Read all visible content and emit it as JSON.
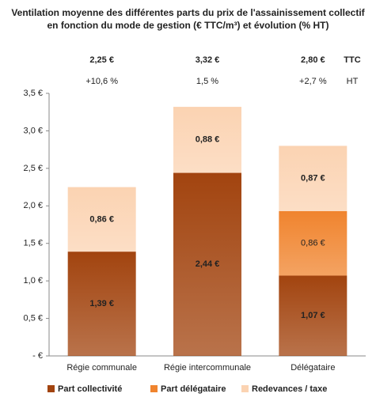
{
  "chart_data": {
    "type": "stacked_bar",
    "title": "Ventilation moyenne des différentes parts du prix de l'assainissement collectif en fonction du mode de gestion (€ TTC/m³) et évolution (% HT)",
    "categories": [
      "Régie communale",
      "Régie intercommunale",
      "Délégataire"
    ],
    "series": [
      {
        "name": "Part collectivité",
        "color": "#a2440f",
        "values": [
          1.39,
          2.44,
          1.07
        ],
        "value_labels": [
          "1,39 €",
          "2,44 €",
          "1,07 €"
        ]
      },
      {
        "name": "Part délégataire",
        "color": "#f0842e",
        "values": [
          null,
          null,
          0.86
        ],
        "value_labels": [
          null,
          null,
          "0,86 €"
        ]
      },
      {
        "name": "Redevances / taxe",
        "color": "#fbd3b2",
        "values": [
          0.86,
          0.88,
          0.87
        ],
        "value_labels": [
          "0,86 €",
          "0,88 €",
          "0,87 €"
        ]
      }
    ],
    "totals": {
      "name": "TTC",
      "values": [
        2.25,
        3.32,
        2.8
      ],
      "value_labels": [
        "2,25 €",
        "3,32 €",
        "2,80 €"
      ]
    },
    "evolution": {
      "name": "HT",
      "values": [
        10.6,
        1.5,
        2.7
      ],
      "value_labels": [
        "+10,6 %",
        "1,5 %",
        "+2,7 %"
      ]
    },
    "ylim": [
      0,
      3.5
    ],
    "yticks": [
      {
        "value": 0,
        "label": "- €"
      },
      {
        "value": 0.5,
        "label": "0,5 €"
      },
      {
        "value": 1,
        "label": "1,0 €"
      },
      {
        "value": 1.5,
        "label": "1,5 €"
      },
      {
        "value": 2,
        "label": "2,0 €"
      },
      {
        "value": 2.5,
        "label": "2,5 €"
      },
      {
        "value": 3,
        "label": "3,0 €"
      },
      {
        "value": 3.5,
        "label": "3,5 €"
      }
    ],
    "grid": false,
    "legend": "bottom"
  }
}
